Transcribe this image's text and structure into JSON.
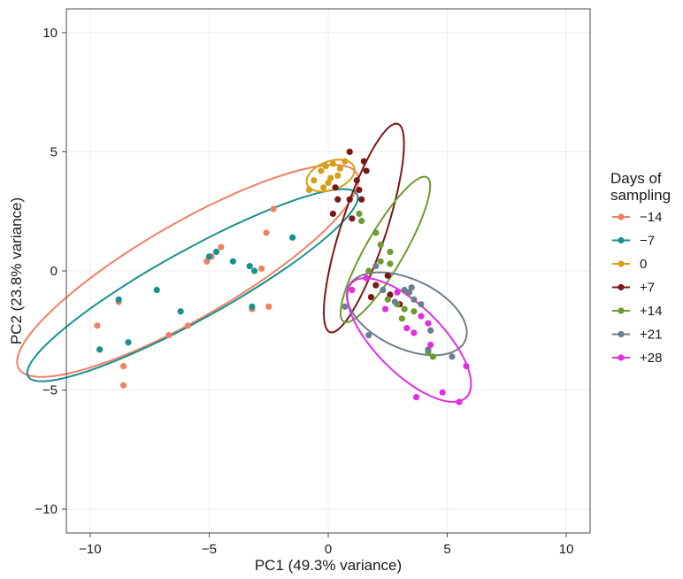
{
  "chart_data": {
    "type": "scatter",
    "title": "",
    "xlabel": "PC1 (49.3% variance)",
    "ylabel": "PC2 (23.8% variance)",
    "xlim": [
      -11,
      11
    ],
    "ylim": [
      -11,
      11
    ],
    "xticks": [
      -10,
      -5,
      0,
      5,
      10
    ],
    "yticks": [
      -10,
      -5,
      0,
      5,
      10
    ],
    "xtick_labels": [
      "−10",
      "−5",
      "0",
      "5",
      "10"
    ],
    "ytick_labels": [
      "−10",
      "−5",
      "0",
      "5",
      "10"
    ],
    "grid": true,
    "legend": {
      "title_lines": [
        "Days of",
        "sampling"
      ],
      "position": "right"
    },
    "ellipses": true,
    "series": [
      {
        "name": "−14",
        "color": "#F07F63",
        "points": [
          [
            -9.7,
            -2.3
          ],
          [
            -9.6,
            -3.3
          ],
          [
            -8.8,
            -1.3
          ],
          [
            -8.6,
            -4.0
          ],
          [
            -8.6,
            -4.8
          ],
          [
            -6.7,
            -2.7
          ],
          [
            -5.9,
            -2.3
          ],
          [
            -5.1,
            0.4
          ],
          [
            -4.5,
            1.0
          ],
          [
            -2.8,
            0.1
          ],
          [
            -2.6,
            1.6
          ],
          [
            -2.3,
            2.6
          ],
          [
            -2.5,
            -1.5
          ],
          [
            -3.2,
            -1.6
          ],
          [
            -4.9,
            0.6
          ]
        ],
        "ellipse": {
          "cx": -5.9,
          "cy": 0.0,
          "rx": 8.2,
          "ry": 2.0,
          "angle_deg": 30
        }
      },
      {
        "name": "−7",
        "color": "#17918E",
        "points": [
          [
            -9.6,
            -3.3
          ],
          [
            -8.8,
            -1.2
          ],
          [
            -8.4,
            -3.0
          ],
          [
            -7.2,
            -0.8
          ],
          [
            -6.2,
            -1.7
          ],
          [
            -5.0,
            0.6
          ],
          [
            -4.7,
            0.8
          ],
          [
            -4.0,
            0.4
          ],
          [
            -3.3,
            0.2
          ],
          [
            -3.1,
            0.0
          ],
          [
            -3.2,
            -1.5
          ],
          [
            -1.5,
            1.4
          ]
        ],
        "ellipse": {
          "cx": -5.7,
          "cy": -0.6,
          "rx": 7.9,
          "ry": 1.45,
          "angle_deg": 29
        }
      },
      {
        "name": "0",
        "color": "#D4A017",
        "points": [
          [
            -0.8,
            3.4
          ],
          [
            -0.6,
            3.8
          ],
          [
            -0.3,
            4.2
          ],
          [
            -0.1,
            4.4
          ],
          [
            0.2,
            4.5
          ],
          [
            0.4,
            4.0
          ],
          [
            0.7,
            4.6
          ],
          [
            -0.2,
            3.5
          ],
          [
            0.1,
            3.9
          ],
          [
            0.5,
            4.3
          ],
          [
            0.0,
            3.7
          ]
        ],
        "ellipse": {
          "cx": 0.1,
          "cy": 4.0,
          "rx": 1.05,
          "ry": 0.6,
          "angle_deg": 20
        }
      },
      {
        "name": "+7",
        "color": "#7A1717",
        "points": [
          [
            0.9,
            5.0
          ],
          [
            1.5,
            4.6
          ],
          [
            1.6,
            4.2
          ],
          [
            1.2,
            3.8
          ],
          [
            1.3,
            3.4
          ],
          [
            0.9,
            3.0
          ],
          [
            1.4,
            3.0
          ],
          [
            0.3,
            3.5
          ],
          [
            0.4,
            3.0
          ],
          [
            0.2,
            2.4
          ],
          [
            1.0,
            2.2
          ],
          [
            2.0,
            -0.6
          ],
          [
            2.6,
            -1.0
          ],
          [
            3.0,
            -1.4
          ],
          [
            2.5,
            -0.2
          ],
          [
            1.8,
            -1.1
          ]
        ],
        "ellipse": {
          "cx": 1.5,
          "cy": 1.8,
          "rx": 4.6,
          "ry": 0.95,
          "angle_deg": 72
        }
      },
      {
        "name": "+14",
        "color": "#6E9A2E",
        "points": [
          [
            1.3,
            2.4
          ],
          [
            1.4,
            2.1
          ],
          [
            2.0,
            1.6
          ],
          [
            2.2,
            1.1
          ],
          [
            2.6,
            0.8
          ],
          [
            2.2,
            0.4
          ],
          [
            2.6,
            0.3
          ],
          [
            2.9,
            -1.4
          ],
          [
            3.2,
            -1.6
          ],
          [
            3.6,
            -1.7
          ],
          [
            3.1,
            -2.0
          ],
          [
            4.2,
            -3.4
          ],
          [
            4.4,
            -3.6
          ],
          [
            1.7,
            0.0
          ],
          [
            2.5,
            -1.2
          ]
        ],
        "ellipse": {
          "cx": 2.4,
          "cy": 0.9,
          "rx": 3.5,
          "ry": 0.8,
          "angle_deg": 60
        }
      },
      {
        "name": "+21",
        "color": "#6E7F8C",
        "points": [
          [
            0.7,
            -1.5
          ],
          [
            1.7,
            -2.7
          ],
          [
            2.0,
            0.2
          ],
          [
            2.3,
            -0.8
          ],
          [
            2.8,
            -1.3
          ],
          [
            3.4,
            -0.9
          ],
          [
            3.5,
            -0.7
          ],
          [
            3.6,
            -1.2
          ],
          [
            3.9,
            -1.4
          ],
          [
            4.2,
            -3.3
          ],
          [
            5.2,
            -3.6
          ],
          [
            4.3,
            -2.5
          ],
          [
            3.2,
            -0.8
          ]
        ],
        "ellipse": {
          "cx": 3.3,
          "cy": -1.8,
          "rx": 2.7,
          "ry": 1.45,
          "angle_deg": -25
        }
      },
      {
        "name": "+28",
        "color": "#E02EE0",
        "points": [
          [
            1.0,
            -0.8
          ],
          [
            1.6,
            -0.3
          ],
          [
            3.3,
            -2.4
          ],
          [
            3.6,
            -2.6
          ],
          [
            4.3,
            -3.1
          ],
          [
            3.7,
            -5.3
          ],
          [
            4.8,
            -5.1
          ],
          [
            5.5,
            -5.5
          ],
          [
            5.8,
            -4.0
          ],
          [
            4.2,
            -2.2
          ],
          [
            2.9,
            -0.9
          ],
          [
            2.4,
            -1.6
          ],
          [
            3.9,
            -1.9
          ]
        ],
        "ellipse": {
          "cx": 3.4,
          "cy": -2.9,
          "rx": 3.4,
          "ry": 1.4,
          "angle_deg": -45
        }
      }
    ]
  }
}
